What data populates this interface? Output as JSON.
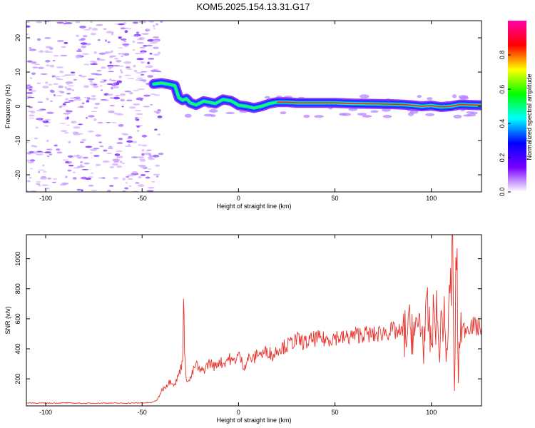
{
  "chart_data": [
    {
      "type": "heatmap",
      "title": "KOM5.2025.154.13.31.G17",
      "xlabel": "Height of straight line (km)",
      "ylabel": "Frequency (Hz)",
      "xlim": [
        -110,
        126
      ],
      "ylim": [
        -25,
        25
      ],
      "x_ticks": [
        -100,
        -50,
        0,
        50,
        100
      ],
      "y_ticks": [
        -20,
        -10,
        0,
        10,
        20
      ],
      "colorbar": {
        "label": "Normalized spectral amplitude",
        "range": [
          0,
          1
        ],
        "ticks": [
          "0.0",
          "0.2",
          "0.4",
          "0.6",
          "0.8"
        ],
        "colors": [
          "#ffffff",
          "#7a00ff",
          "#0000ff",
          "#00ffff",
          "#00ff00",
          "#ffff00",
          "#ff0000",
          "#ff00aa"
        ]
      },
      "ridge": {
        "x": [
          -44,
          -40,
          -35,
          -33,
          -31,
          -29,
          -27,
          -25,
          -22,
          -18,
          -12,
          -8,
          -4,
          -2,
          0,
          4,
          8,
          12,
          16,
          20,
          25,
          30,
          40,
          50,
          60,
          70,
          80,
          85,
          90,
          95,
          100,
          105,
          110,
          115,
          120,
          126
        ],
        "y": [
          6.5,
          6.8,
          6.3,
          6.0,
          2.5,
          1.8,
          2.2,
          1.0,
          0.4,
          1.5,
          0.8,
          2.0,
          1.6,
          1.0,
          0.3,
          0.0,
          -0.5,
          0.0,
          0.8,
          1.2,
          1.2,
          1.0,
          1.0,
          1.0,
          0.8,
          0.7,
          0.6,
          0.5,
          0.3,
          0.0,
          0.2,
          -0.2,
          0.0,
          0.5,
          0.4,
          0.3
        ]
      }
    },
    {
      "type": "line",
      "xlabel": "Height of straight line (km)",
      "ylabel": "SNR (v/v)",
      "xlim": [
        -110,
        126
      ],
      "ylim": [
        20,
        1160
      ],
      "x_ticks": [
        -100,
        -50,
        0,
        50,
        100
      ],
      "y_ticks": [
        200,
        400,
        600,
        800,
        1000
      ],
      "color": "#e8312a",
      "series": [
        {
          "x": [
            -110,
            -100,
            -90,
            -80,
            -70,
            -60,
            -50,
            -45,
            -42,
            -40,
            -38,
            -35,
            -33,
            -31,
            -30,
            -29,
            -28.5,
            -28,
            -27,
            -26,
            -25,
            -22,
            -20,
            -18,
            -15,
            -12,
            -10,
            -8,
            -5,
            -3,
            0,
            3,
            5,
            8,
            10,
            12,
            15,
            18,
            20,
            25,
            30,
            35,
            40,
            45,
            50,
            55,
            60,
            65,
            70,
            75,
            80,
            85,
            88,
            90,
            92,
            94,
            96,
            98,
            100,
            102,
            104,
            106,
            108,
            110,
            111,
            112,
            113,
            114,
            115,
            116,
            118,
            120,
            122,
            124,
            126
          ],
          "y": [
            40,
            38,
            40,
            37,
            39,
            38,
            40,
            42,
            60,
            120,
            150,
            190,
            160,
            230,
            270,
            330,
            820,
            350,
            210,
            180,
            200,
            300,
            250,
            260,
            310,
            280,
            320,
            300,
            340,
            310,
            360,
            280,
            340,
            330,
            380,
            360,
            390,
            350,
            400,
            420,
            460,
            440,
            470,
            460,
            480,
            470,
            490,
            500,
            490,
            510,
            520,
            500,
            510,
            560,
            480,
            600,
            450,
            620,
            430,
            700,
            400,
            650,
            380,
            800,
            1020,
            100,
            1150,
            200,
            600,
            520,
            540,
            560,
            550,
            540,
            550
          ]
        }
      ]
    }
  ]
}
